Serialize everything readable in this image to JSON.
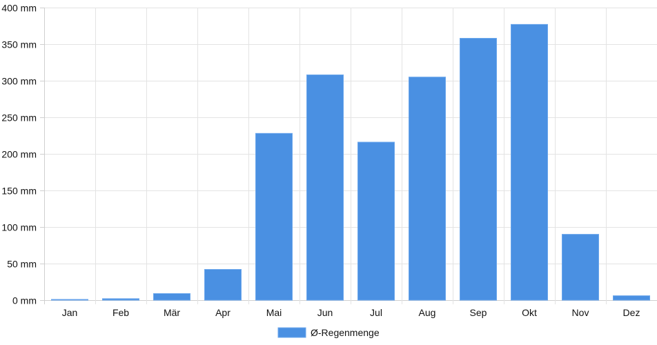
{
  "chart_data": {
    "type": "bar",
    "categories": [
      "Jan",
      "Feb",
      "Mär",
      "Apr",
      "Mai",
      "Jun",
      "Jul",
      "Aug",
      "Sep",
      "Okt",
      "Nov",
      "Dez"
    ],
    "series": [
      {
        "name": "Ø-Regenmenge",
        "values": [
          1,
          2,
          9,
          42,
          228,
          308,
          216,
          305,
          358,
          377,
          90,
          6
        ],
        "color": "#4a90e2"
      }
    ],
    "ylim": [
      0,
      400
    ],
    "y_ticks": [
      0,
      50,
      100,
      150,
      200,
      250,
      300,
      350,
      400
    ],
    "y_tick_labels": [
      "0 mm",
      "50 mm",
      "100 mm",
      "150 mm",
      "200 mm",
      "250 mm",
      "300 mm",
      "350 mm",
      "400 mm"
    ],
    "grid": true,
    "legend_position": "bottom-center",
    "title": "",
    "xlabel": "",
    "ylabel": ""
  }
}
